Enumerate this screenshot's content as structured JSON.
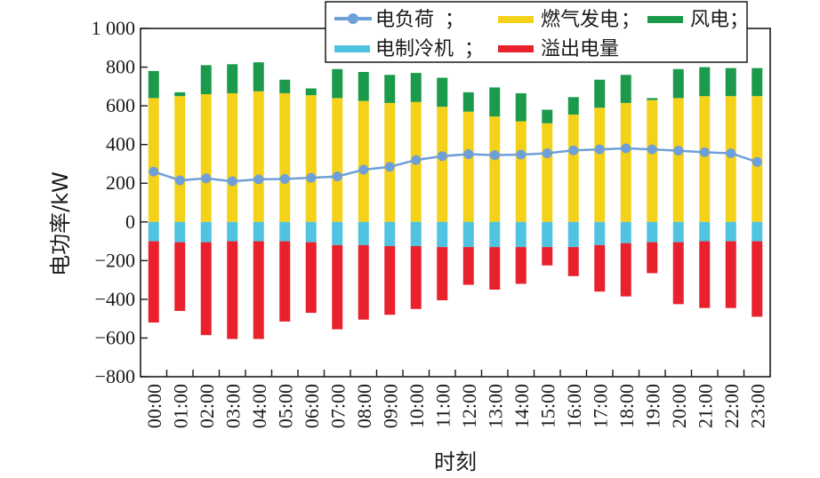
{
  "chart_data": {
    "type": "bar",
    "stacked": true,
    "categories": [
      "00:00",
      "01:00",
      "02:00",
      "03:00",
      "04:00",
      "05:00",
      "06:00",
      "07:00",
      "08:00",
      "09:00",
      "10:00",
      "11:00",
      "12:00",
      "13:00",
      "14:00",
      "15:00",
      "16:00",
      "17:00",
      "18:00",
      "19:00",
      "20:00",
      "21:00",
      "22:00",
      "23:00"
    ],
    "xlabel": "时刻",
    "ylabel": "电功率/kW",
    "ylim": [
      -800,
      1000
    ],
    "yticks": [
      -800,
      -600,
      -400,
      -200,
      0,
      200,
      400,
      600,
      800,
      1000
    ],
    "ytick_labels": [
      "−800",
      "−600",
      "−400",
      "−200",
      "0",
      "200",
      "400",
      "600",
      "800",
      "1 000"
    ],
    "grid": false,
    "legend_position": "top-right",
    "series": [
      {
        "name": "电负荷",
        "kind": "line",
        "color": "#6f9fd8",
        "values": [
          260,
          215,
          225,
          210,
          220,
          222,
          228,
          235,
          270,
          285,
          320,
          340,
          350,
          345,
          348,
          355,
          370,
          375,
          380,
          375,
          368,
          360,
          355,
          310
        ]
      },
      {
        "name": "燃气发电",
        "kind": "bar",
        "color": "#f5d21a",
        "values": [
          640,
          650,
          660,
          665,
          675,
          665,
          655,
          640,
          625,
          615,
          620,
          595,
          570,
          545,
          520,
          510,
          555,
          590,
          615,
          630,
          640,
          650,
          650,
          650
        ]
      },
      {
        "name": "风电",
        "kind": "bar",
        "color": "#1a9a4a",
        "values": [
          140,
          20,
          150,
          150,
          150,
          70,
          35,
          150,
          150,
          145,
          150,
          150,
          100,
          150,
          145,
          70,
          90,
          145,
          145,
          10,
          150,
          150,
          145,
          145
        ]
      },
      {
        "name": "电制冷机",
        "kind": "bar",
        "color": "#4fc3e0",
        "values": [
          -100,
          -105,
          -105,
          -100,
          -100,
          -100,
          -105,
          -120,
          -120,
          -125,
          -125,
          -130,
          -130,
          -130,
          -130,
          -130,
          -130,
          -120,
          -110,
          -105,
          -105,
          -100,
          -100,
          -100
        ]
      },
      {
        "name": "溢出电量",
        "kind": "bar",
        "color": "#e8212d",
        "values": [
          -420,
          -355,
          -480,
          -505,
          -505,
          -415,
          -365,
          -435,
          -385,
          -355,
          -325,
          -275,
          -195,
          -220,
          -190,
          -95,
          -150,
          -240,
          -275,
          -160,
          -320,
          -345,
          -345,
          -390
        ]
      }
    ]
  }
}
